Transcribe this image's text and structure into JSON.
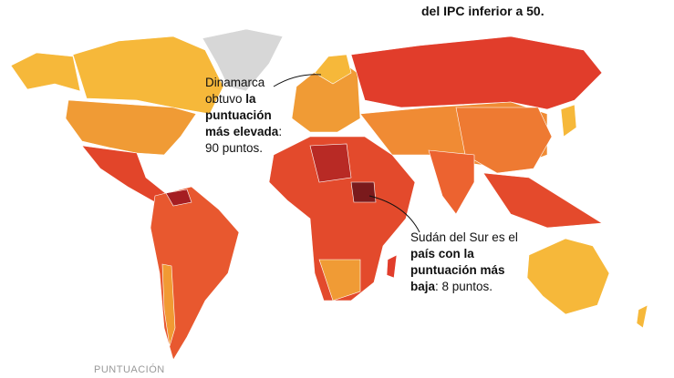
{
  "header": {
    "caption": "del IPC inferior a 50."
  },
  "annotations": [
    {
      "parts": [
        {
          "text": "Dinamarca obtuvo ",
          "bold": false
        },
        {
          "text": "la puntuación más elevada",
          "bold": true
        },
        {
          "text": ": 90 puntos.",
          "bold": false
        }
      ]
    },
    {
      "parts": [
        {
          "text": "Sudán del Sur es el ",
          "bold": false
        },
        {
          "text": "país con la puntuación más baja",
          "bold": true
        },
        {
          "text": ": 8 puntos.",
          "bold": false
        }
      ]
    }
  ],
  "legend": {
    "title": "PUNTUACIÓN"
  }
}
